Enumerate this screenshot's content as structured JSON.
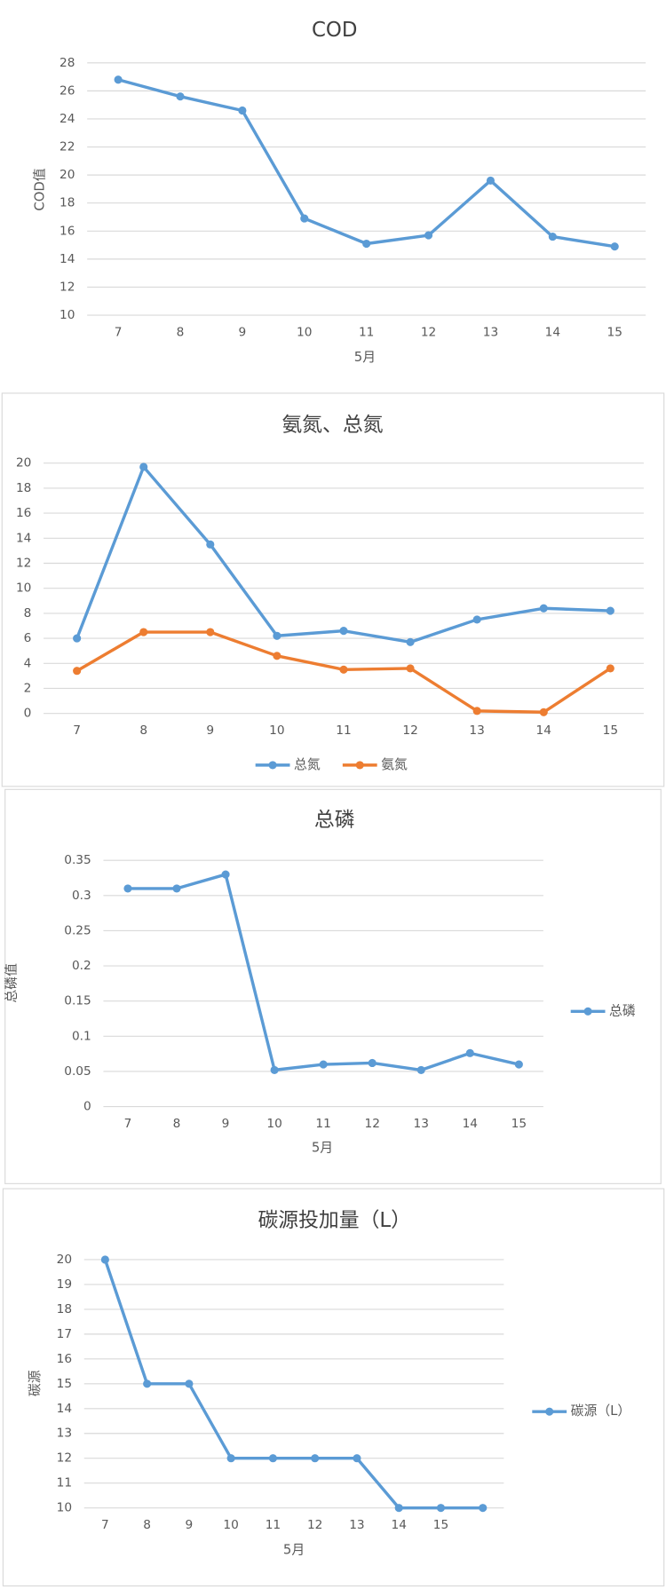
{
  "chart_data": [
    {
      "type": "line",
      "title": "COD",
      "x_label": "5月",
      "y_label": "COD值",
      "categories": [
        "7",
        "8",
        "9",
        "10",
        "11",
        "12",
        "13",
        "14",
        "15"
      ],
      "series": [
        {
          "color": "#5b9bd5",
          "values": [
            26.8,
            25.6,
            24.6,
            16.9,
            15.1,
            15.7,
            19.6,
            15.6,
            14.9
          ]
        }
      ],
      "ylim": [
        10,
        28
      ],
      "yticks": [
        10,
        12,
        14,
        16,
        18,
        20,
        22,
        24,
        26,
        28
      ],
      "grid": true
    },
    {
      "type": "line",
      "title": "氨氮、总氮",
      "categories": [
        "7",
        "8",
        "9",
        "10",
        "11",
        "12",
        "13",
        "14",
        "15"
      ],
      "series": [
        {
          "name": "总氮",
          "color": "#5b9bd5",
          "values": [
            6.0,
            19.7,
            13.5,
            6.2,
            6.6,
            5.7,
            7.5,
            8.4,
            8.2
          ]
        },
        {
          "name": "氨氮",
          "color": "#ed7d31",
          "values": [
            3.4,
            6.5,
            6.5,
            4.6,
            3.5,
            3.6,
            0.2,
            0.1,
            3.6
          ]
        }
      ],
      "ylim": [
        0,
        20
      ],
      "yticks": [
        0,
        2,
        4,
        6,
        8,
        10,
        12,
        14,
        16,
        18,
        20
      ],
      "grid": true,
      "legend": "bottom"
    },
    {
      "type": "line",
      "title": "总磷",
      "x_label": "5月",
      "y_label": "总磷值",
      "categories": [
        "7",
        "8",
        "9",
        "10",
        "11",
        "12",
        "13",
        "14",
        "15"
      ],
      "series": [
        {
          "name": "总磷",
          "color": "#5b9bd5",
          "values": [
            0.31,
            0.31,
            0.33,
            0.052,
            0.06,
            0.062,
            0.052,
            0.076,
            0.06
          ]
        }
      ],
      "ylim": [
        0,
        0.35
      ],
      "yticks": [
        0,
        0.05,
        0.1,
        0.15,
        0.2,
        0.25,
        0.3,
        0.35
      ],
      "grid": true,
      "legend": "right"
    },
    {
      "type": "line",
      "title": "碳源投加量（L）",
      "x_label": "5月",
      "y_label": "碳源",
      "categories": [
        "7",
        "8",
        "9",
        "10",
        "11",
        "12",
        "13",
        "14",
        "15",
        null
      ],
      "series": [
        {
          "name": "碳源（L）",
          "color": "#5b9bd5",
          "values": [
            20,
            15,
            15,
            12,
            12,
            12,
            12,
            10,
            10,
            10
          ]
        }
      ],
      "ylim": [
        10,
        20
      ],
      "yticks": [
        10,
        11,
        12,
        13,
        14,
        15,
        16,
        17,
        18,
        19,
        20
      ],
      "grid": true,
      "legend": "right"
    }
  ]
}
